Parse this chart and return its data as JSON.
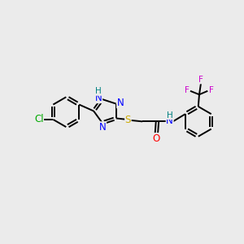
{
  "background_color": "#ebebeb",
  "bond_color": "#000000",
  "atom_colors": {
    "N": "#0000ff",
    "H": "#008080",
    "S": "#ccaa00",
    "O": "#ff0000",
    "Cl": "#00aa00",
    "F": "#cc00cc",
    "C": "#000000"
  },
  "figsize": [
    3.0,
    3.0
  ],
  "dpi": 100
}
